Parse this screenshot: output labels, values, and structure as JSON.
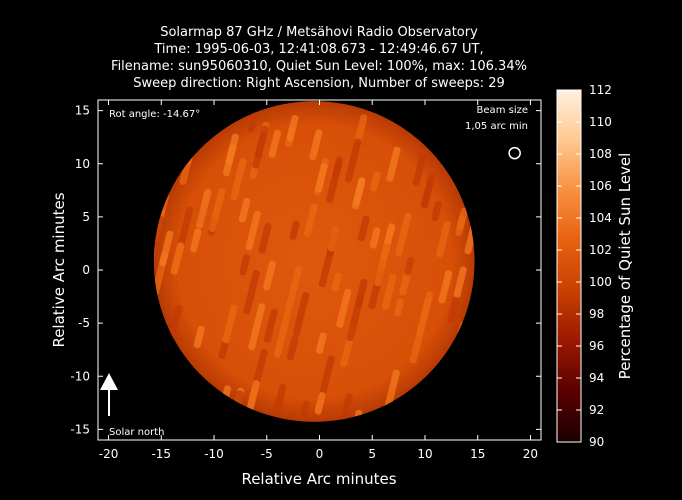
{
  "title_lines": [
    "Solarmap 87 GHz / Metsähovi Radio Observatory",
    "Time: 1995-06-03, 12:41:08.673 - 12:49:46.67 UT,",
    "Filename: sun95060310, Quiet Sun Level: 100%, max: 106.34%",
    "Sweep direction: Right Ascension, Number of sweeps: 29"
  ],
  "annotations": {
    "rot_angle": "Rot angle: -14.67°",
    "beam_size_line1": "Beam size",
    "beam_size_line2": "1,05 arc min",
    "solar_north": "Solar north"
  },
  "colors": {
    "background": "#000000",
    "axes": "#ffffff",
    "colormap": [
      "#1a0000",
      "#5a0000",
      "#9a1800",
      "#c84000",
      "#e86010",
      "#f89040",
      "#ffc890",
      "#fff0e0"
    ]
  },
  "chart_data": {
    "type": "heatmap",
    "xlabel": "Relative Arc minutes",
    "ylabel": "Relative Arc minutes",
    "xlim": [
      -21,
      21
    ],
    "ylim": [
      -16,
      16
    ],
    "x_ticks": [
      -20,
      -15,
      -10,
      -5,
      0,
      5,
      10,
      15,
      20
    ],
    "y_ticks": [
      -15,
      -10,
      -5,
      0,
      5,
      10,
      15
    ],
    "colorbar": {
      "label": "Percentage of Quiet Sun Level",
      "range": [
        90,
        112
      ],
      "ticks": [
        90,
        92,
        94,
        96,
        98,
        100,
        102,
        104,
        106,
        108,
        110,
        112
      ]
    },
    "solar_disk": {
      "center": [
        -0.5,
        0.8
      ],
      "radius": 15.2,
      "level_min": 98,
      "level_max": 106.34
    },
    "beam": {
      "center": [
        18.5,
        11
      ],
      "diameter": 1.05
    },
    "sweeps": 29,
    "grid": false
  }
}
